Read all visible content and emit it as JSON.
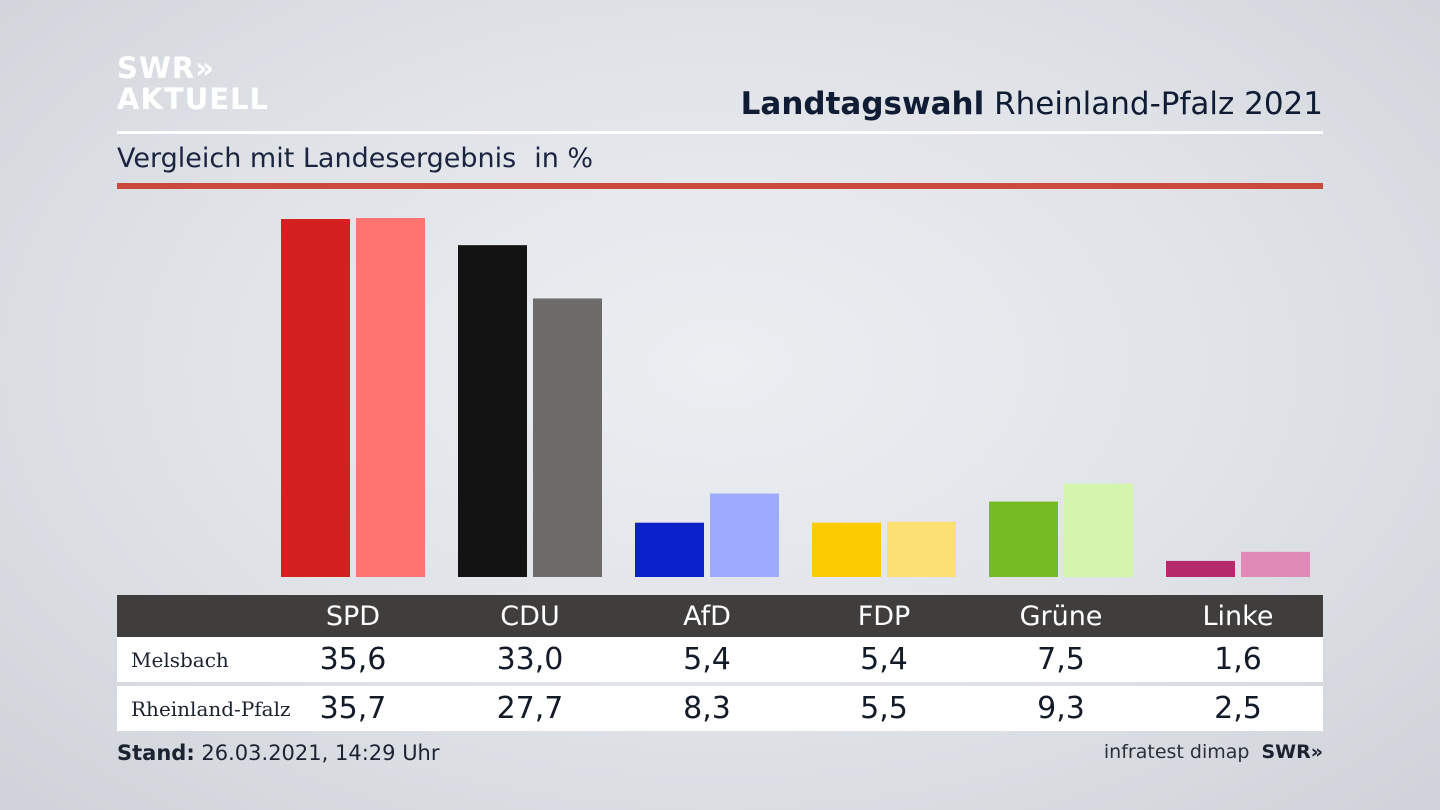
{
  "logo": {
    "line1": "SWR»",
    "line2": "AKTUELL"
  },
  "header": {
    "title_bold": "Landtagswahl",
    "title_rest": "Rheinland-Pfalz 2021"
  },
  "subtitle": {
    "text": "Vergleich mit Landesergebnis",
    "unit": "in %"
  },
  "colors": {
    "accent_rule": "#cc4a3c",
    "table_header": "#3f3e3d"
  },
  "chart_data": {
    "type": "bar",
    "categories": [
      "SPD",
      "CDU",
      "AfD",
      "FDP",
      "Grüne",
      "Linke"
    ],
    "series": [
      {
        "name": "Melsbach",
        "values": [
          35.6,
          33.0,
          5.4,
          5.4,
          7.5,
          1.6
        ],
        "colors": [
          "#d42020",
          "#131313",
          "#0a20c8",
          "#fdcc00",
          "#77bb22",
          "#b52a6a"
        ]
      },
      {
        "name": "Rheinland-Pfalz",
        "values": [
          35.7,
          27.7,
          8.3,
          5.5,
          9.3,
          2.5
        ],
        "colors": [
          "#ff7470",
          "#6d6c6b",
          "#9daaff",
          "#fde074",
          "#d4f5ae",
          "#e08ab8"
        ]
      }
    ],
    "ylim": [
      0,
      36
    ]
  },
  "table": {
    "headers": [
      "SPD",
      "CDU",
      "AfD",
      "FDP",
      "Grüne",
      "Linke"
    ],
    "rows": [
      {
        "label": "Melsbach",
        "values": [
          "35,6",
          "33,0",
          "5,4",
          "5,4",
          "7,5",
          "1,6"
        ]
      },
      {
        "label": "Rheinland-Pfalz",
        "values": [
          "35,7",
          "27,7",
          "8,3",
          "5,5",
          "9,3",
          "2,5"
        ]
      }
    ]
  },
  "footer": {
    "stand_label": "Stand:",
    "stand_value": "26.03.2021, 14:29 Uhr",
    "source": "infratest dimap",
    "brand": "SWR»"
  }
}
